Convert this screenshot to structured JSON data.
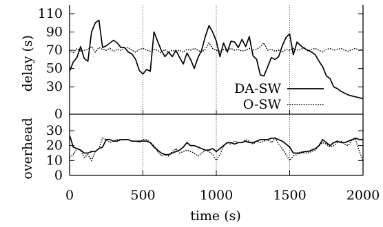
{
  "chart_data": {
    "type": "line",
    "x_shared": {
      "label": "time (s)",
      "range": [
        0,
        2000
      ],
      "ticks": [
        0,
        500,
        1000,
        1500,
        2000
      ],
      "grid": "vertical dotted lines at 500, 1000, 1500"
    },
    "legend": {
      "placement": "inside top panel, bottom-right",
      "entries": [
        {
          "label": "DA-SW",
          "style": "solid"
        },
        {
          "label": "O-SW",
          "style": "dotted"
        }
      ]
    },
    "panels": [
      {
        "id": "delay",
        "ylabel": "delay (s)",
        "ylim": [
          0,
          115
        ],
        "yticks": [
          0,
          30,
          50,
          70,
          90,
          110
        ],
        "series": [
          {
            "name": "DA-SW",
            "style": "solid",
            "x": [
              0,
              25,
              50,
              75,
              100,
              125,
              150,
              175,
              200,
              225,
              250,
              275,
              300,
              325,
              350,
              375,
              400,
              425,
              450,
              475,
              500,
              525,
              550,
              575,
              600,
              625,
              650,
              675,
              700,
              725,
              750,
              775,
              800,
              825,
              850,
              875,
              900,
              925,
              950,
              975,
              1000,
              1025,
              1050,
              1075,
              1100,
              1125,
              1150,
              1175,
              1200,
              1225,
              1250,
              1275,
              1300,
              1325,
              1350,
              1375,
              1400,
              1425,
              1450,
              1475,
              1500,
              1525,
              1550,
              1575,
              1600,
              1625,
              1650,
              1675,
              1700,
              1725,
              1750,
              1775,
              1800,
              1825,
              1850,
              1875,
              1900,
              1925,
              1950,
              1975,
              2000
            ],
            "values": [
              47,
              57,
              62,
              74,
              61,
              58,
              90,
              100,
              103,
              73,
              75,
              78,
              81,
              78,
              73,
              73,
              68,
              66,
              60,
              48,
              44,
              49,
              47,
              90,
              80,
              70,
              63,
              68,
              63,
              70,
              62,
              55,
              67,
              60,
              50,
              62,
              70,
              85,
              97,
              90,
              80,
              63,
              78,
              68,
              80,
              79,
              73,
              82,
              74,
              85,
              64,
              60,
              43,
              42,
              52,
              62,
              60,
              63,
              75,
              84,
              88,
              65,
              79,
              75,
              72,
              70,
              68,
              65,
              58,
              52,
              42,
              39,
              30,
              28,
              25,
              23,
              21,
              20,
              19,
              18,
              17
            ]
          },
          {
            "name": "O-SW",
            "style": "dotted",
            "x": [
              0,
              25,
              50,
              75,
              100,
              125,
              150,
              175,
              200,
              225,
              250,
              275,
              300,
              325,
              350,
              375,
              400,
              425,
              450,
              475,
              500,
              525,
              550,
              575,
              600,
              625,
              650,
              675,
              700,
              725,
              750,
              775,
              800,
              825,
              850,
              875,
              900,
              925,
              950,
              975,
              1000,
              1025,
              1050,
              1075,
              1100,
              1125,
              1150,
              1175,
              1200,
              1225,
              1250,
              1275,
              1300,
              1325,
              1350,
              1375,
              1400,
              1425,
              1450,
              1475,
              1500,
              1525,
              1550,
              1575,
              1600,
              1625,
              1650,
              1675,
              1700,
              1725,
              1750,
              1775,
              1800,
              1825,
              1850,
              1875,
              1900,
              1925,
              1950,
              1975,
              2000
            ],
            "values": [
              70,
              67,
              72,
              69,
              70,
              71,
              74,
              68,
              73,
              71,
              70,
              72,
              69,
              71,
              70,
              72,
              73,
              70,
              68,
              71,
              72,
              70,
              69,
              71,
              70,
              67,
              71,
              68,
              70,
              69,
              70,
              68,
              71,
              70,
              72,
              70,
              68,
              71,
              78,
              72,
              70,
              69,
              71,
              70,
              72,
              70,
              71,
              69,
              70,
              72,
              70,
              71,
              74,
              78,
              70,
              71,
              69,
              70,
              68,
              71,
              70,
              72,
              70,
              71,
              73,
              69,
              71,
              72,
              70,
              68,
              71,
              72,
              70,
              71,
              72,
              70,
              69,
              71,
              72,
              70,
              71
            ]
          }
        ]
      },
      {
        "id": "overhead",
        "ylabel": "overhead",
        "ylim": [
          0,
          38
        ],
        "yticks": [
          0,
          10,
          20,
          30
        ],
        "series": [
          {
            "name": "DA-SW",
            "style": "solid",
            "x": [
              0,
              25,
              50,
              75,
              100,
              125,
              150,
              175,
              200,
              225,
              250,
              275,
              300,
              325,
              350,
              375,
              400,
              425,
              450,
              475,
              500,
              525,
              550,
              575,
              600,
              625,
              650,
              675,
              700,
              725,
              750,
              775,
              800,
              825,
              850,
              875,
              900,
              925,
              950,
              975,
              1000,
              1025,
              1050,
              1075,
              1100,
              1125,
              1150,
              1175,
              1200,
              1225,
              1250,
              1275,
              1300,
              1325,
              1350,
              1375,
              1400,
              1425,
              1450,
              1475,
              1500,
              1525,
              1550,
              1575,
              1600,
              1625,
              1650,
              1675,
              1700,
              1725,
              1750,
              1775,
              1800,
              1825,
              1850,
              1875,
              1900,
              1925,
              1950,
              1975,
              2000
            ],
            "values": [
              27,
              19,
              18,
              17,
              15,
              15,
              16,
              16,
              18,
              19,
              24,
              24,
              23,
              23,
              24,
              24,
              24,
              23,
              23,
              23,
              23,
              23,
              22,
              19,
              17,
              15,
              14,
              14,
              15,
              16,
              17,
              19,
              22,
              20,
              20,
              19,
              18,
              17,
              17,
              18,
              16,
              18,
              20,
              22,
              22,
              21,
              22,
              22,
              23,
              22,
              22,
              23,
              24,
              24,
              24,
              25,
              25,
              24,
              23,
              21,
              19,
              15,
              15,
              15,
              16,
              16,
              17,
              18,
              20,
              24,
              22,
              20,
              22,
              23,
              22,
              22,
              23,
              24,
              25,
              24,
              24
            ]
          },
          {
            "name": "O-SW",
            "style": "dotted",
            "x": [
              0,
              25,
              50,
              75,
              100,
              125,
              150,
              175,
              200,
              225,
              250,
              275,
              300,
              325,
              350,
              375,
              400,
              425,
              450,
              475,
              500,
              525,
              550,
              575,
              600,
              625,
              650,
              675,
              700,
              725,
              750,
              775,
              800,
              825,
              850,
              875,
              900,
              925,
              950,
              975,
              1000,
              1025,
              1050,
              1075,
              1100,
              1125,
              1150,
              1175,
              1200,
              1225,
              1250,
              1275,
              1300,
              1325,
              1350,
              1375,
              1400,
              1425,
              1450,
              1475,
              1500,
              1525,
              1550,
              1575,
              1600,
              1625,
              1650,
              1675,
              1700,
              1725,
              1750,
              1775,
              1800,
              1825,
              1850,
              1875,
              1900,
              1925,
              1950,
              1975,
              2000
            ],
            "values": [
              12,
              14,
              18,
              17,
              12,
              14,
              10,
              16,
              18,
              25,
              24,
              22,
              23,
              24,
              24,
              24,
              24,
              23,
              23,
              22,
              24,
              24,
              22,
              20,
              16,
              13,
              14,
              13,
              16,
              18,
              15,
              16,
              17,
              16,
              15,
              13,
              15,
              17,
              16,
              14,
              10,
              14,
              20,
              22,
              21,
              23,
              22,
              22,
              24,
              23,
              21,
              23,
              22,
              23,
              24,
              22,
              25,
              21,
              18,
              14,
              10,
              13,
              14,
              16,
              15,
              15,
              16,
              17,
              20,
              22,
              21,
              19,
              20,
              22,
              23,
              21,
              20,
              24,
              24,
              16,
              10
            ]
          }
        ]
      }
    ]
  }
}
